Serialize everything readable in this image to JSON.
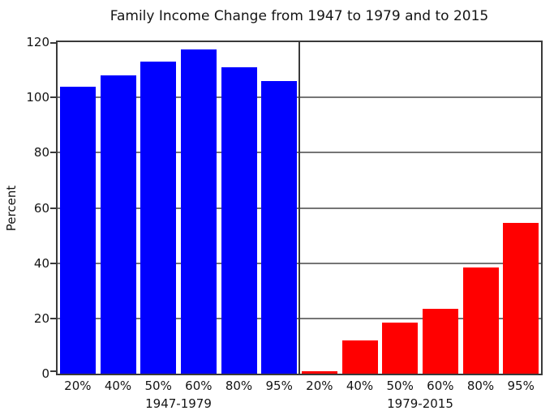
{
  "title": "Family Income Change from 1947 to 1979 and to 2015",
  "ylabel": "Percent",
  "colors": {
    "series_1947_1979": "#0000ff",
    "series_1979_2015": "#ff0000",
    "gridline": "#757575",
    "spine": "#3a3a3a",
    "background": "#ffffff"
  },
  "chart_data": {
    "type": "bar",
    "title": "Family Income Change from 1947 to 1979 and to 2015",
    "xlabel": "",
    "ylabel": "Percent",
    "ylim": [
      0,
      120
    ],
    "yticks": [
      0,
      20,
      40,
      60,
      80,
      100,
      120
    ],
    "grid": true,
    "legend_position": "none",
    "categories": [
      "20%",
      "40%",
      "50%",
      "60%",
      "80%",
      "95%"
    ],
    "series": [
      {
        "name": "1947-1979",
        "color": "#0000ff",
        "values": [
          104,
          108,
          113,
          117.5,
          111,
          106
        ]
      },
      {
        "name": "1979-2015",
        "color": "#ff0000",
        "values": [
          1,
          12,
          18.5,
          23.5,
          38.5,
          54.5
        ]
      }
    ]
  }
}
